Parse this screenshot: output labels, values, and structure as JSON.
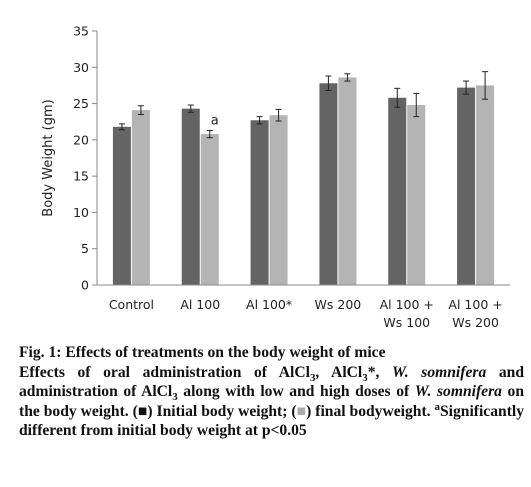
{
  "chart_data": {
    "type": "bar",
    "categories": [
      [
        "Control"
      ],
      [
        "Al 100"
      ],
      [
        "Al 100*"
      ],
      [
        "Ws 200"
      ],
      [
        "Al 100 +",
        "Ws 100"
      ],
      [
        "Al 100 +",
        "Ws 200"
      ]
    ],
    "series": [
      {
        "values": [
          21.8,
          24.3,
          22.7,
          27.8,
          25.8,
          27.2
        ],
        "errors": [
          0.4,
          0.5,
          0.5,
          1.0,
          1.3,
          0.9
        ],
        "color": "#646464"
      },
      {
        "values": [
          24.1,
          20.8,
          23.4,
          28.6,
          24.8,
          27.5
        ],
        "errors": [
          0.6,
          0.5,
          0.8,
          0.5,
          1.6,
          1.9
        ],
        "color": "#b4b4b4"
      }
    ],
    "ylabel": "Body Weight (gm)",
    "xlabel": "",
    "ylim": [
      0,
      35
    ],
    "yticks": [
      0,
      5,
      10,
      15,
      20,
      25,
      30,
      35
    ],
    "annotations": [
      {
        "category_index": 1,
        "series_index": 1,
        "text": "a"
      }
    ],
    "grid": false,
    "legend": "none"
  },
  "caption": {
    "title": "Fig. 1: Effects of treatments on the body weight of mice",
    "p1": "Effects of oral administration of AlCl",
    "sub3a": "3",
    "p2": ", AlCl",
    "sub3b": "3",
    "p3": "*, ",
    "ws1": "W. somnifera",
    "p4": " and administration of AlCl",
    "sub3c": "3",
    "p5": " along with low and high doses of ",
    "ws2": "W. somnifera",
    "p6": " on the body weight. (",
    "sq1": "■",
    "p7": ") Initial body weight; (",
    "sq2": "■",
    "p8": ") final bodyweight. ",
    "supa": "a",
    "p9": "Significantly different from initial body weight at p<0.05"
  }
}
